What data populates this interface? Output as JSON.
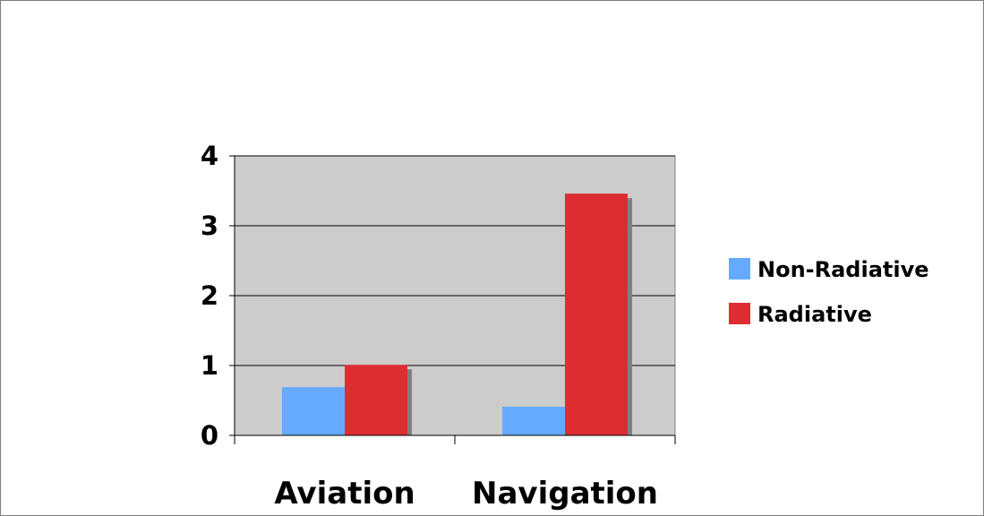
{
  "chart_data": {
    "type": "bar",
    "title": "",
    "xlabel": "",
    "ylabel": "",
    "categories": [
      "Aviation",
      "Navigation"
    ],
    "series": [
      {
        "name": "Non-Radiative",
        "values": [
          0.69,
          0.41
        ],
        "color": "#66aaff"
      },
      {
        "name": "Radiative",
        "values": [
          1.01,
          3.46
        ],
        "color": "#dd2d33"
      }
    ],
    "ylim": [
      0,
      4
    ],
    "yticks": [
      "0",
      "1",
      "2",
      "3",
      "4"
    ],
    "grid": true,
    "plot_background": "#cccccc",
    "shadow_color": "#808080",
    "legend": "right"
  }
}
